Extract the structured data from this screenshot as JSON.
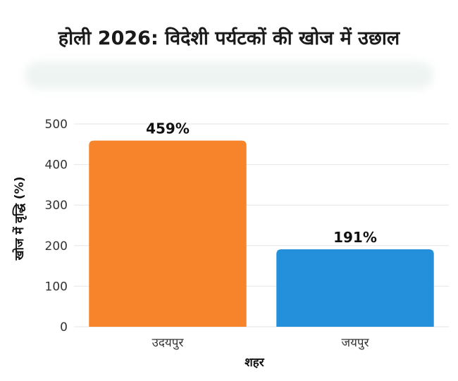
{
  "chart_data": {
    "type": "bar",
    "title": "होली 2026: विदेशी पर्यटकों की खोज में उछाल",
    "categories": [
      "उदयपुर",
      "जयपुर"
    ],
    "values": [
      459,
      191
    ],
    "data_labels": [
      "459%",
      "191%"
    ],
    "colors": [
      "#f7842a",
      "#2490db"
    ],
    "xlabel": "शहर",
    "ylabel": "खोज में वृद्धि (%)",
    "ylim": [
      0,
      500
    ],
    "yticks": [
      0,
      100,
      200,
      300,
      400,
      500
    ],
    "grid": true,
    "legend": "none"
  }
}
